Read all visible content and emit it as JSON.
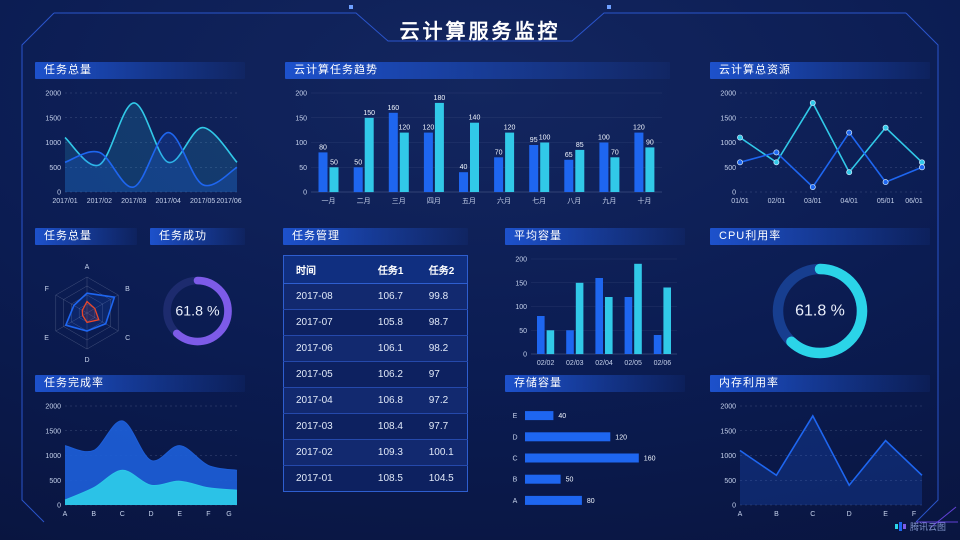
{
  "title": "云计算服务监控",
  "watermark": "腾讯云图",
  "colors": {
    "background": "#0B1C52",
    "panel_header": "#1E54D2",
    "frame_line": "#2E5BD8",
    "frame_accent": "#6B46E8",
    "series_blue": "#1E66F0",
    "series_cyan": "#31C9E8",
    "donut_purple": "#7D5BE8",
    "radar_red": "#E8472C"
  },
  "chart_data": [
    {
      "type": "line",
      "title": "任务总量",
      "categories": [
        "2017/01",
        "2017/02",
        "2017/03",
        "2017/04",
        "2017/05",
        "2017/06"
      ],
      "ylim": [
        0,
        2000
      ],
      "yticks": [
        0,
        500,
        1000,
        1500,
        2000
      ],
      "grid": "dashed",
      "padL": 30,
      "series": [
        {
          "name": "cyan-series",
          "color": "#31C9E8",
          "values": [
            1100,
            550,
            1800,
            600,
            1300,
            600
          ],
          "smooth": true,
          "fill": true,
          "fillOpacity": 0.16
        },
        {
          "name": "blue-series",
          "color": "#1E66F0",
          "values": [
            600,
            800,
            100,
            1200,
            150,
            500
          ],
          "smooth": true,
          "fill": true,
          "fillOpacity": 0.2
        }
      ]
    },
    {
      "type": "bar",
      "title": "云计算任务趋势",
      "categories": [
        "一月",
        "二月",
        "三月",
        "四月",
        "五月",
        "六月",
        "七月",
        "八月",
        "九月",
        "十月"
      ],
      "ylim": [
        0,
        200
      ],
      "yticks": [
        0,
        50,
        100,
        150,
        200
      ],
      "labels": true,
      "padL": 26,
      "series": [
        {
          "name": "任务1",
          "color": "#1E66F0",
          "values": [
            80,
            50,
            160,
            120,
            40,
            70,
            95,
            65,
            100,
            120
          ]
        },
        {
          "name": "任务2",
          "color": "#31C9E8",
          "values": [
            50,
            150,
            120,
            180,
            140,
            120,
            100,
            85,
            70,
            90
          ]
        }
      ]
    },
    {
      "type": "line",
      "title": "云计算总资源",
      "categories": [
        "01/01",
        "02/01",
        "03/01",
        "04/01",
        "05/01",
        "06/01"
      ],
      "ylim": [
        0,
        2000
      ],
      "yticks": [
        0,
        500,
        1000,
        1500,
        2000
      ],
      "grid": "dashed",
      "padL": 30,
      "series": [
        {
          "name": "cyan-series",
          "color": "#31C9E8",
          "values": [
            1100,
            600,
            1800,
            400,
            1300,
            600
          ],
          "markers": true
        },
        {
          "name": "blue-series",
          "color": "#1E66F0",
          "values": [
            600,
            800,
            100,
            1200,
            200,
            500
          ],
          "markers": true
        }
      ]
    },
    {
      "type": "radar",
      "title": "任务总量",
      "axes": [
        "A",
        "B",
        "C",
        "D",
        "E",
        "F"
      ],
      "max": 100,
      "levels": 4,
      "series": [
        {
          "name": "blue-polygon",
          "color": "#1E66F0",
          "values": [
            55,
            88,
            60,
            50,
            68,
            42
          ]
        },
        {
          "name": "red-polygon",
          "color": "#E8472C",
          "values": [
            32,
            25,
            38,
            26,
            14,
            15
          ]
        }
      ]
    },
    {
      "type": "donut",
      "title": "任务成功",
      "value": 61.8,
      "label": "61.8 %",
      "color": "#7D5BE8",
      "track": "#1D2B6E"
    },
    {
      "type": "table",
      "title": "任务管理",
      "headers": [
        "时间",
        "任务1",
        "任务2"
      ],
      "rows": [
        [
          "2017-08",
          "106.7",
          "99.8"
        ],
        [
          "2017-07",
          "105.8",
          "98.7"
        ],
        [
          "2017-06",
          "106.1",
          "98.2"
        ],
        [
          "2017-05",
          "106.2",
          "97"
        ],
        [
          "2017-04",
          "106.8",
          "97.2"
        ],
        [
          "2017-03",
          "108.4",
          "97.7"
        ],
        [
          "2017-02",
          "109.3",
          "100.1"
        ],
        [
          "2017-01",
          "108.5",
          "104.5"
        ]
      ]
    },
    {
      "type": "bar",
      "title": "平均容量",
      "categories": [
        "02/02",
        "02/03",
        "02/04",
        "02/05",
        "02/06"
      ],
      "ylim": [
        0,
        200
      ],
      "yticks": [
        0,
        50,
        100,
        150,
        200
      ],
      "labels": false,
      "padL": 26,
      "series": [
        {
          "name": "blue-series",
          "color": "#1E66F0",
          "values": [
            80,
            50,
            160,
            120,
            40
          ]
        },
        {
          "name": "cyan-series",
          "color": "#31C9E8",
          "values": [
            50,
            150,
            120,
            190,
            140
          ]
        }
      ]
    },
    {
      "type": "donut",
      "title": "CPU利用率",
      "value": 61.8,
      "label": "61.8 %",
      "color": "#2BD4E8",
      "track": "#173E8F"
    },
    {
      "type": "area",
      "title": "任务完成率",
      "categories": [
        "A",
        "B",
        "C",
        "D",
        "E",
        "F",
        "G"
      ],
      "ylim": [
        0,
        2000
      ],
      "yticks": [
        0,
        500,
        1000,
        1500,
        2000
      ],
      "grid": "dashed",
      "padL": 30,
      "series": [
        {
          "name": "blue-area",
          "color": "#1D5ED8",
          "values": [
            1200,
            1100,
            1700,
            900,
            1200,
            800,
            700
          ],
          "smooth": true,
          "fill": true,
          "fillOpacity": 0.92,
          "width": 1
        },
        {
          "name": "cyan-area",
          "color": "#2CC8E8",
          "values": [
            100,
            350,
            700,
            400,
            480,
            350,
            300
          ],
          "smooth": true,
          "fill": true,
          "fillOpacity": 0.95,
          "width": 1
        }
      ]
    },
    {
      "type": "hbar",
      "title": "存储容量",
      "categories": [
        "E",
        "D",
        "C",
        "B",
        "A"
      ],
      "values": [
        40,
        120,
        160,
        50,
        80
      ],
      "xmax": 180,
      "color": "#1E66F0"
    },
    {
      "type": "line",
      "title": "内存利用率",
      "categories": [
        "A",
        "B",
        "C",
        "D",
        "E",
        "F"
      ],
      "ylim": [
        0,
        2000
      ],
      "yticks": [
        0,
        500,
        1000,
        1500,
        2000
      ],
      "grid": "dashed",
      "padL": 30,
      "series": [
        {
          "name": "blue-series",
          "color": "#1E66F0",
          "values": [
            1100,
            600,
            1800,
            400,
            1300,
            600
          ],
          "fill": true,
          "fillOpacity": 0.22
        }
      ]
    }
  ]
}
